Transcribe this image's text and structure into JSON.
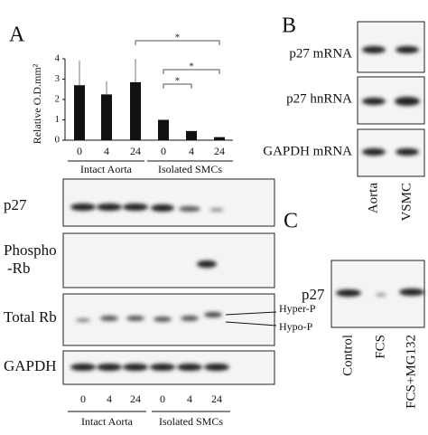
{
  "panel_labels": [
    "A",
    "B",
    "C"
  ],
  "chart_data": {
    "type": "bar",
    "y_label": "Relative O.D.mm²",
    "categories": [
      "0",
      "4",
      "24",
      "0",
      "4",
      "24"
    ],
    "groups": [
      "Intact Aorta",
      "Isolated SMCs"
    ],
    "values": [
      2.7,
      2.25,
      2.85,
      1.0,
      0.45,
      0.15
    ],
    "errors": [
      1.2,
      0.65,
      1.15,
      0,
      0,
      0
    ],
    "color": "#111111",
    "ylim": [
      0,
      4
    ],
    "yticks": [
      0,
      1,
      2,
      3,
      4
    ],
    "annotations": [
      "*",
      "*",
      "*"
    ]
  },
  "blot_a": {
    "rows": [
      [
        "p27"
      ],
      [
        "Phospho",
        "-Rb"
      ],
      [
        "Total Rb"
      ],
      [
        "GAPDH"
      ]
    ],
    "markers": [
      "Hyper-P",
      "Hypo-P"
    ],
    "lanes": [
      "0",
      "4",
      "24",
      "0",
      "4",
      "24"
    ],
    "groups": [
      "Intact Aorta",
      "Isolated SMCs"
    ]
  },
  "blot_b": {
    "rows": [
      "p27 mRNA",
      "p27 hnRNA",
      "GAPDH mRNA"
    ],
    "lanes": [
      "Aorta",
      "VSMC"
    ]
  },
  "blot_c": {
    "row": "p27",
    "lanes": [
      "Control",
      "FCS",
      "FCS+MG132"
    ]
  }
}
